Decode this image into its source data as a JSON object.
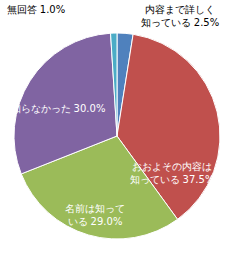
{
  "chart_data": {
    "type": "pie",
    "categories": [
      "内容まで詳しく知っている",
      "おおよその内容は知っている",
      "名前は知っている",
      "知らなかった",
      "無回答"
    ],
    "values": [
      2.5,
      37.5,
      29.0,
      30.0,
      1.0
    ],
    "value_labels": [
      "2.5%",
      "37.5%",
      "29.0%",
      "30.0%",
      "1.0%"
    ],
    "colors": [
      "#4f81bd",
      "#c0504d",
      "#9bbb59",
      "#8064a2",
      "#4bacc6"
    ],
    "data_labels": true
  }
}
